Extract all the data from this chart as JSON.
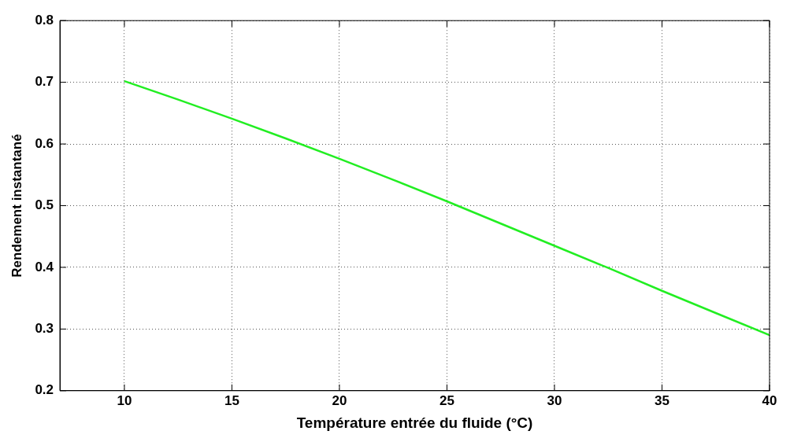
{
  "chart_data": {
    "type": "line",
    "xlabel": "Température entrée du fluide (°C)",
    "ylabel": "Rendement instantané",
    "x": [
      10,
      12.5,
      15,
      17.5,
      20,
      22.5,
      25,
      27.5,
      30,
      32.5,
      35,
      37.5,
      40
    ],
    "series": [
      {
        "color": "#22ee22",
        "values": [
          0.702,
          0.672,
          0.641,
          0.609,
          0.576,
          0.542,
          0.507,
          0.471,
          0.435,
          0.399,
          0.362,
          0.326,
          0.29
        ]
      }
    ],
    "xlim": [
      7,
      40
    ],
    "xticks": [
      10,
      15,
      20,
      25,
      30,
      35,
      40
    ],
    "ylim": [
      0.2,
      0.8
    ],
    "yticks": [
      0.2,
      0.3,
      0.4,
      0.5,
      0.6,
      0.7,
      0.8
    ],
    "grid": true,
    "legend": false,
    "marker": "none",
    "line_style": "solid"
  }
}
